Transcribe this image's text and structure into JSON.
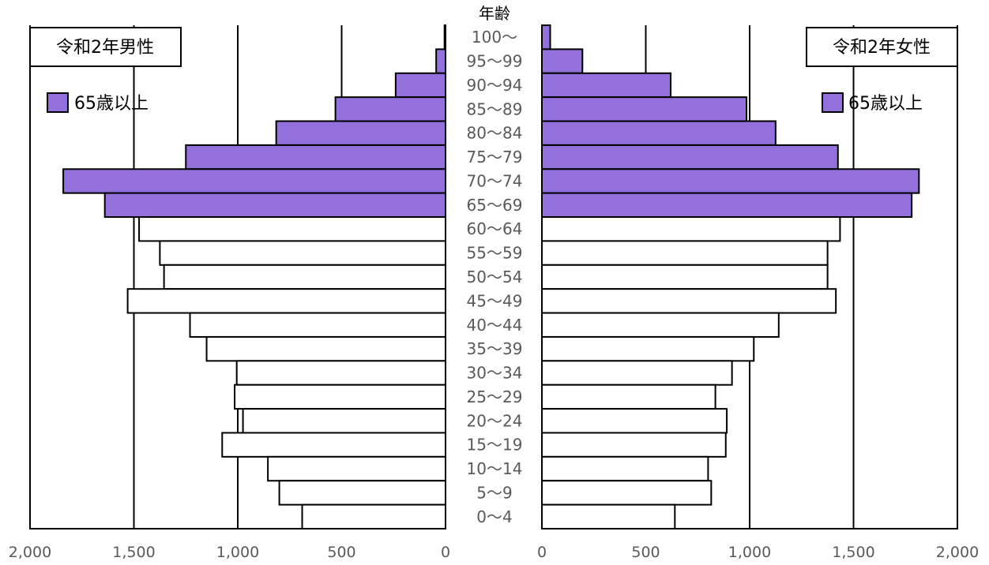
{
  "chart_data": {
    "type": "bar",
    "title": "",
    "age_axis_title": "年齢",
    "categories": [
      "100～",
      "95～99",
      "90～94",
      "85～89",
      "80～84",
      "75～79",
      "70～74",
      "65～69",
      "60～64",
      "55～59",
      "50～54",
      "45～49",
      "40～44",
      "35～39",
      "30～34",
      "25～29",
      "20～24",
      "15～19",
      "10～14",
      "5～9",
      "0～4"
    ],
    "xlim": [
      0,
      2000
    ],
    "tick_labels": [
      "2,000",
      "1,500",
      "1,000",
      "500",
      "0"
    ],
    "right_tick_labels": [
      "0",
      "500",
      "1,000",
      "1,500",
      "2,000"
    ],
    "grid": true,
    "legend_label": "65歳以上",
    "highlight_color": "#9370DB",
    "other_color": "#ffffff",
    "series": [
      {
        "name": "令和2年男性",
        "values": [
          5,
          45,
          240,
          530,
          815,
          1250,
          1840,
          1640,
          1475,
          1375,
          1355,
          1530,
          1230,
          1150,
          1005,
          1015,
          975,
          1075,
          855,
          800,
          690
        ]
      },
      {
        "name": "令和2年女性",
        "values": [
          40,
          195,
          620,
          985,
          1125,
          1425,
          1815,
          1780,
          1435,
          1375,
          1375,
          1415,
          1140,
          1020,
          915,
          835,
          890,
          885,
          800,
          815,
          640
        ]
      }
    ]
  }
}
